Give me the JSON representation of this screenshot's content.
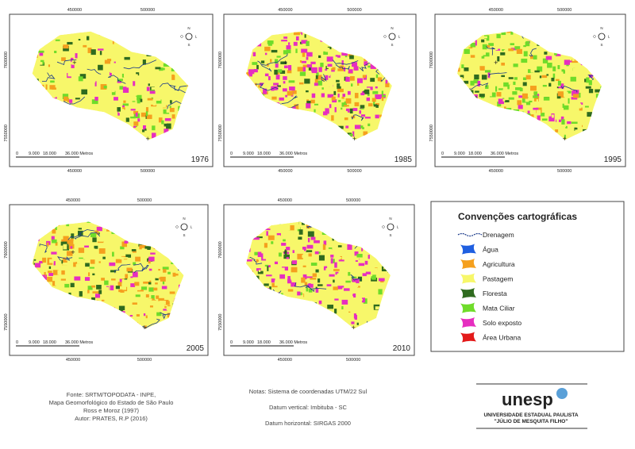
{
  "maps": [
    {
      "year": "1976",
      "x_labels": [
        "450000",
        "500000"
      ],
      "y_labels": [
        "7600000",
        "7550000"
      ],
      "scale_labels": [
        "0",
        "9.000",
        "18.000",
        "36.000 Metros"
      ]
    },
    {
      "year": "1985",
      "x_labels": [
        "450000",
        "500000"
      ],
      "y_labels": [
        "7600000",
        "7550000"
      ],
      "scale_labels": [
        "0",
        "9.000",
        "18.000",
        "36.000 Metros"
      ]
    },
    {
      "year": "1995",
      "x_labels": [
        "450000",
        "500000"
      ],
      "y_labels": [
        "7600000",
        "7550000"
      ],
      "scale_labels": [
        "0",
        "9.000",
        "18.000",
        "36.000 Metros"
      ]
    },
    {
      "year": "2005",
      "x_labels": [
        "450000",
        "500000"
      ],
      "y_labels": [
        "7600000",
        "7550000"
      ],
      "scale_labels": [
        "0",
        "9.000",
        "18.000",
        "36.000 Metros"
      ]
    },
    {
      "year": "2010",
      "x_labels": [
        "450000",
        "500000"
      ],
      "y_labels": [
        "7600000",
        "7550000"
      ],
      "scale_labels": [
        "0",
        "9.000",
        "18.000",
        "36.000 Metros"
      ]
    }
  ],
  "compass": [
    "N",
    "S",
    "L",
    "O"
  ],
  "legend": {
    "title": "Convenções cartográficas",
    "items": [
      {
        "label": "Drenagem",
        "color": "#1a3a8a"
      },
      {
        "label": "Água",
        "color": "#1f5fe0"
      },
      {
        "label": "Agricultura",
        "color": "#f5a01e"
      },
      {
        "label": "Pastagem",
        "color": "#f7f76a"
      },
      {
        "label": "Floresta",
        "color": "#2f6b1f"
      },
      {
        "label": "Mata Ciliar",
        "color": "#6fdc2a"
      },
      {
        "label": "Solo exposto",
        "color": "#e62ec0"
      },
      {
        "label": "Área Urbana",
        "color": "#e31a1a"
      }
    ]
  },
  "source": [
    "Fonte: SRTM/TOPODATA - INPE,",
    "Mapa Geomorfológico do Estado de São Paulo",
    "Ross e Moroz (1997)",
    "Autor: PRATES, R.P (2016)"
  ],
  "notes": [
    "Notas: Sistema de coordenadas UTM/22 Sul",
    "Datum vertical: Imbituba - SC",
    "Datum horizontal: SIRGAS 2000"
  ],
  "logo": {
    "name": "unesp",
    "line1": "UNIVERSIDADE ESTADUAL PAULISTA",
    "line2": "\"JÚLIO DE MESQUITA FILHO\""
  }
}
